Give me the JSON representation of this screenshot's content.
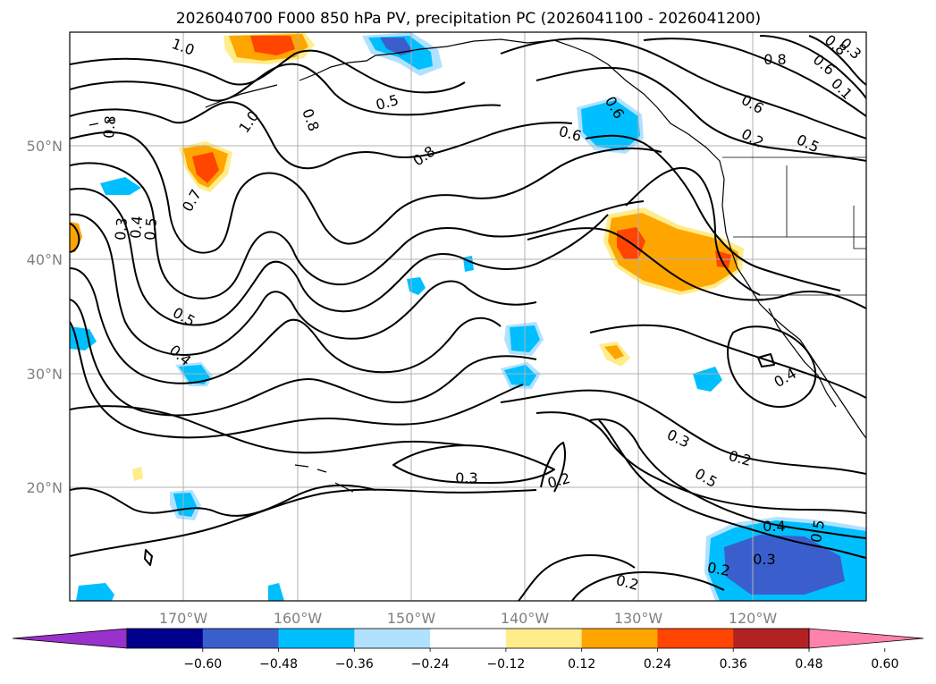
{
  "title": "2026040700 F000 850 hPa PV, precipitation PC (2026041100 - 2026041200)",
  "lon_ticks": [
    "170°W",
    "160°W",
    "150°W",
    "140°W",
    "130°W",
    "120°W"
  ],
  "lat_ticks": [
    "50°N",
    "40°N",
    "30°N",
    "20°N"
  ],
  "colorbar": {
    "tick_labels": [
      "−0.60",
      "−0.48",
      "−0.36",
      "−0.24",
      "−0.12",
      "0.12",
      "0.24",
      "0.36",
      "0.48",
      "0.60"
    ],
    "colors": [
      "#9932cc",
      "#00008b",
      "#3a5fcd",
      "#00bfff",
      "#b0e2ff",
      "#ffffff",
      "#ffec8b",
      "#ffa500",
      "#ff4500",
      "#b22222",
      "#ff82ab"
    ]
  },
  "contour_labels": [
    {
      "text": "1.0"
    },
    {
      "text": "0.8"
    },
    {
      "text": "0.5"
    },
    {
      "text": "0.8"
    },
    {
      "text": "1.0"
    },
    {
      "text": "0.8"
    },
    {
      "text": "0.7"
    },
    {
      "text": "0.3"
    },
    {
      "text": "0.4"
    },
    {
      "text": "0.5"
    },
    {
      "text": "0.5"
    },
    {
      "text": "0.4"
    },
    {
      "text": "0.6"
    },
    {
      "text": "0.6"
    },
    {
      "text": "0.8"
    },
    {
      "text": "0.6"
    },
    {
      "text": "0.2"
    },
    {
      "text": "0.5"
    },
    {
      "text": "0.8"
    },
    {
      "text": "0.6"
    },
    {
      "text": "0.1"
    },
    {
      "text": "0.3"
    },
    {
      "text": "0.4"
    },
    {
      "text": "0.3"
    },
    {
      "text": "0.2"
    },
    {
      "text": "0.5"
    },
    {
      "text": "0.3"
    },
    {
      "text": "0.2"
    },
    {
      "text": "0.4"
    },
    {
      "text": "0.3"
    },
    {
      "text": "0.5"
    },
    {
      "text": "0.2"
    },
    {
      "text": "0.2"
    }
  ]
}
